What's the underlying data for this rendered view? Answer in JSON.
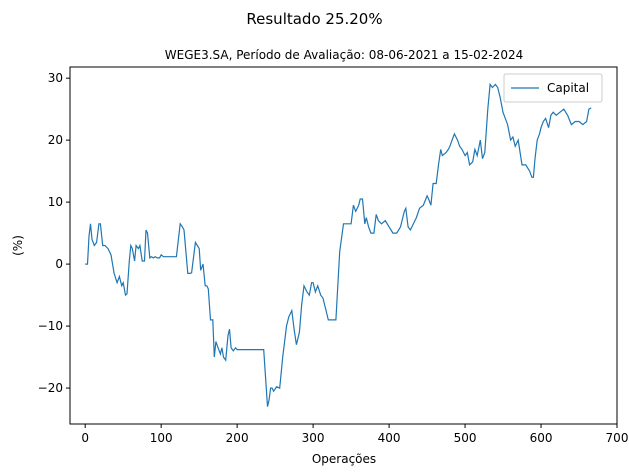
{
  "figure": {
    "suptitle": "Resultado 25.20%"
  },
  "chart_data": {
    "type": "line",
    "title": "WEGE3.SA, Período de Avaliação: 08-06-2021 a 15-02-2024",
    "xlabel": "Operações",
    "ylabel": "(%)",
    "xlim": [
      -20,
      700
    ],
    "ylim": [
      -25.8,
      31.8
    ],
    "xticks": [
      0,
      100,
      200,
      300,
      400,
      500,
      600,
      700
    ],
    "yticks": [
      -20,
      -10,
      0,
      10,
      20,
      30
    ],
    "legend": "upper-right",
    "grid": false,
    "series": [
      {
        "name": "Capital",
        "color": "#1f77b4",
        "x": [
          0,
          3,
          5,
          7,
          9,
          12,
          15,
          18,
          20,
          23,
          26,
          30,
          34,
          38,
          42,
          45,
          48,
          50,
          53,
          55,
          58,
          60,
          62,
          65,
          67,
          70,
          72,
          75,
          78,
          80,
          82,
          85,
          87,
          90,
          92,
          95,
          98,
          100,
          103,
          106,
          110,
          115,
          120,
          125,
          128,
          130,
          135,
          138,
          140,
          145,
          150,
          152,
          155,
          158,
          160,
          162,
          165,
          168,
          170,
          172,
          175,
          178,
          180,
          182,
          185,
          188,
          190,
          192,
          195,
          198,
          200,
          203,
          206,
          210,
          213,
          216,
          220,
          225,
          230,
          235,
          240,
          242,
          244,
          246,
          248,
          252,
          256,
          260,
          263,
          265,
          268,
          270,
          272,
          275,
          278,
          282,
          285,
          288,
          292,
          295,
          298,
          300,
          303,
          306,
          310,
          313,
          316,
          320,
          325,
          330,
          335,
          340,
          345,
          350,
          353,
          356,
          360,
          362,
          365,
          368,
          370,
          373,
          376,
          380,
          383,
          386,
          390,
          395,
          400,
          405,
          410,
          415,
          418,
          420,
          422,
          425,
          428,
          432,
          436,
          440,
          445,
          450,
          452,
          455,
          458,
          462,
          465,
          468,
          470,
          475,
          478,
          480,
          483,
          486,
          490,
          493,
          496,
          500,
          503,
          506,
          510,
          513,
          516,
          520,
          523,
          526,
          530,
          533,
          536,
          540,
          543,
          546,
          550,
          553,
          556,
          560,
          563,
          566,
          570,
          575,
          580,
          585,
          588,
          590,
          592,
          595,
          598,
          600,
          603,
          606,
          610,
          613,
          616,
          620,
          625,
          630,
          635,
          640,
          645,
          650,
          655,
          660,
          663,
          666
        ],
        "y": [
          0,
          0,
          4.5,
          6.5,
          4.0,
          3.0,
          3.5,
          6.5,
          6.5,
          3.0,
          3.0,
          2.5,
          1.5,
          -1.5,
          -3.0,
          -2.0,
          -3.5,
          -3.0,
          -5.0,
          -4.8,
          0.5,
          3.0,
          2.5,
          0.5,
          3.0,
          2.5,
          3.0,
          0.5,
          0.5,
          5.5,
          5.0,
          1.0,
          1.2,
          1.0,
          1.2,
          1.0,
          1.0,
          1.5,
          1.2,
          1.2,
          1.2,
          1.2,
          1.2,
          6.5,
          6.0,
          5.5,
          -1.5,
          -1.5,
          -1.4,
          3.5,
          2.5,
          -1.0,
          0.0,
          -3.5,
          -3.5,
          -4.0,
          -9.0,
          -9.0,
          -15.0,
          -12.5,
          -13.5,
          -14.5,
          -13.5,
          -15.0,
          -15.5,
          -11.5,
          -10.5,
          -13.5,
          -14.0,
          -13.5,
          -13.8,
          -13.8,
          -13.8,
          -13.8,
          -13.8,
          -13.8,
          -13.8,
          -13.8,
          -13.8,
          -13.8,
          -23.0,
          -22.0,
          -20.0,
          -20.0,
          -20.5,
          -19.8,
          -20.0,
          -15.0,
          -12.0,
          -10.0,
          -8.5,
          -8.0,
          -7.5,
          -10.5,
          -13.0,
          -11.0,
          -6.5,
          -3.5,
          -4.5,
          -5.0,
          -3.0,
          -3.0,
          -4.5,
          -3.5,
          -5.0,
          -5.5,
          -7.0,
          -9.0,
          -9.0,
          -9.0,
          2.0,
          6.5,
          6.5,
          6.5,
          9.5,
          8.5,
          9.5,
          10.5,
          10.5,
          6.5,
          7.5,
          6.0,
          5.0,
          5.0,
          8.0,
          7.0,
          6.5,
          7.0,
          6.0,
          5.0,
          5.0,
          6.0,
          7.5,
          8.5,
          9.0,
          6.0,
          5.5,
          6.5,
          7.5,
          9.0,
          9.5,
          11.0,
          10.5,
          9.5,
          13.0,
          13.0,
          16.0,
          18.5,
          17.5,
          18.0,
          18.5,
          19.0,
          20.0,
          21.0,
          20.0,
          19.0,
          18.5,
          17.5,
          18.0,
          16.0,
          16.5,
          18.5,
          17.5,
          20.0,
          17.0,
          18.0,
          25.0,
          29.0,
          28.5,
          29.0,
          28.5,
          27.0,
          24.5,
          23.5,
          22.5,
          20.0,
          20.5,
          19.0,
          20.0,
          16.0,
          16.0,
          15.0,
          14.0,
          14.0,
          17.0,
          20.0,
          21.0,
          22.0,
          23.0,
          23.5,
          22.0,
          24.0,
          24.5,
          24.0,
          24.5,
          25.0,
          24.0,
          22.5,
          23.0,
          23.0,
          22.5,
          23.0,
          25.0,
          25.2
        ]
      }
    ]
  }
}
